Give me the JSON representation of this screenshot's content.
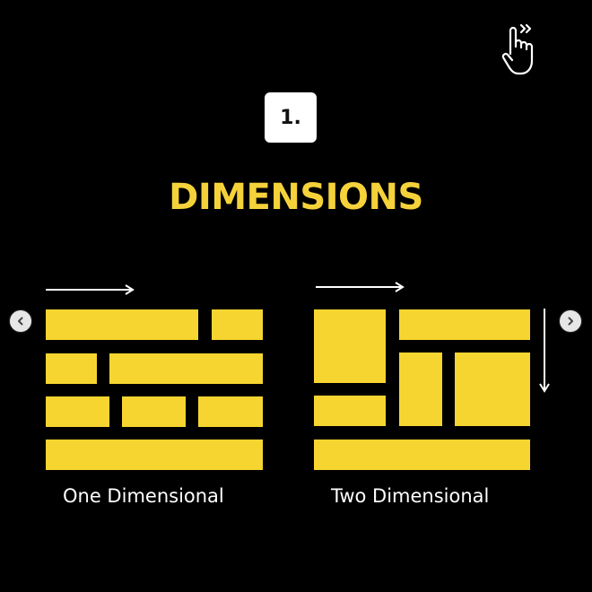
{
  "slide": {
    "step_badge": "1.",
    "title": "DIMENSIONS",
    "captions": {
      "one_dimensional": "One Dimensional",
      "two_dimensional": "Two Dimensional"
    }
  },
  "icons": {
    "swipe": "swipe-hand-icon",
    "prev": "chevron-left-icon",
    "next": "chevron-right-icon"
  },
  "colors": {
    "background": "#000000",
    "accent": "#f5d23a",
    "block": "#f6d530",
    "badge_bg": "#ffffff",
    "text": "#ffffff"
  }
}
